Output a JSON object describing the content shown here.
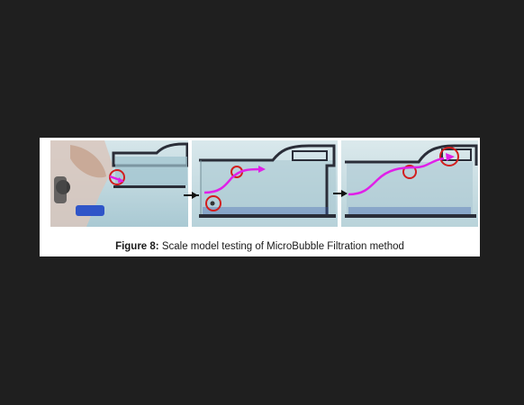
{
  "figure": {
    "label": "Figure 8:",
    "caption": "Scale model testing of MicroBubble Filtration method",
    "panels": [
      {
        "name": "panel-1",
        "description_icon": "hand-holding-bubble-injector"
      },
      {
        "name": "panel-2",
        "description_icon": "bubble-path-mid"
      },
      {
        "name": "panel-3",
        "description_icon": "bubble-path-exit"
      }
    ]
  },
  "colors": {
    "page_background": "#1f1f1f",
    "card_background": "#ffffff",
    "bubble_path": "#e020e8",
    "marker_circle": "#d21e1e",
    "arrow": "#111111",
    "model_outline": "#2a2d38",
    "water": "#bcd6dc",
    "base_bar": "#2a3b6e"
  }
}
